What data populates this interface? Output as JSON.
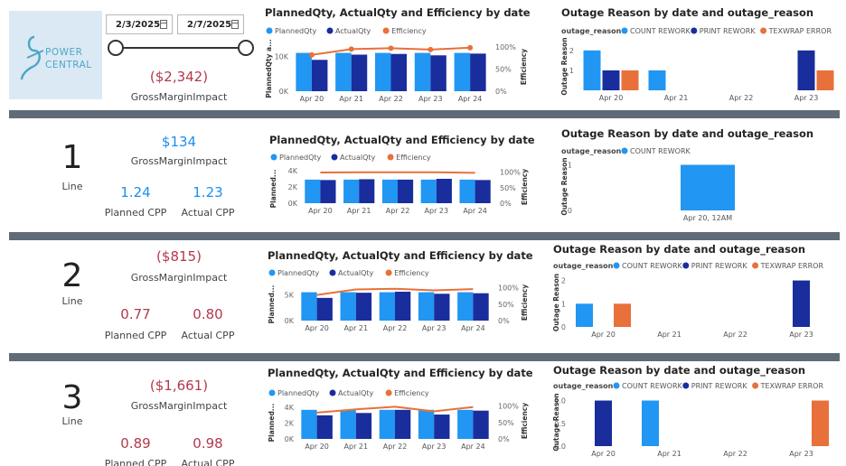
{
  "logo": {
    "line1": "POWER",
    "line2": "CENTRAL"
  },
  "date_range": {
    "start": "2/3/2025",
    "end": "2/7/2025",
    "start_fraction": 0.0,
    "end_fraction": 1.0
  },
  "summary": {
    "gross_margin_value": "($2,342)",
    "gross_margin_label": "GrossMarginImpact"
  },
  "labels": {
    "line": "Line",
    "gmi": "GrossMarginImpact",
    "planned_cpp": "Planned CPP",
    "actual_cpp": "Actual CPP"
  },
  "rows": [
    {
      "line_number": "1",
      "gmi_value": "$134",
      "gmi_color": "#1a8ff0",
      "planned_cpp": "1.24",
      "actual_cpp": "1.23",
      "cpp_color": "#1a8ff0"
    },
    {
      "line_number": "2",
      "gmi_value": "($815)",
      "gmi_color": "#b4384c",
      "planned_cpp": "0.77",
      "actual_cpp": "0.80",
      "cpp_color": "#b4384c"
    },
    {
      "line_number": "3",
      "gmi_value": "($1,661)",
      "gmi_color": "#b4384c",
      "planned_cpp": "0.89",
      "actual_cpp": "0.98",
      "cpp_color": "#b4384c"
    }
  ],
  "colors": {
    "planned": "#2196f3",
    "actual": "#1a2d9c",
    "efficiency": "#e8703a",
    "count_rework": "#2196f3",
    "print_rework": "#1a2d9c",
    "texwrap_error": "#e8703a",
    "separator": "#5f6b76"
  },
  "chart_data": [
    {
      "id": "qty-total",
      "type": "bar",
      "title": "PlannedQty, ActualQty and Efficiency by date",
      "categories": [
        "Apr 20",
        "Apr 21",
        "Apr 22",
        "Apr 23",
        "Apr 24"
      ],
      "series": [
        {
          "name": "PlannedQty",
          "values": [
            11000,
            11000,
            11000,
            11000,
            11000
          ]
        },
        {
          "name": "ActualQty",
          "values": [
            9000,
            10500,
            10700,
            10300,
            10800
          ]
        },
        {
          "name": "Efficiency",
          "axis": "right",
          "values": [
            82,
            95,
            97,
            94,
            98
          ]
        }
      ],
      "ylabel": "PlannedQty a...",
      "y2label": "Efficiency",
      "yticks": [
        "0K",
        "10K"
      ],
      "ylim": [
        0,
        14000
      ],
      "y2ticks": [
        "0%",
        "50%",
        "100%"
      ],
      "y2lim": [
        0,
        110
      ]
    },
    {
      "id": "qty-line1",
      "type": "bar",
      "title": "PlannedQty, ActualQty and Efficiency by date",
      "categories": [
        "Apr 20",
        "Apr 21",
        "Apr 22",
        "Apr 23",
        "Apr 24"
      ],
      "series": [
        {
          "name": "PlannedQty",
          "values": [
            2900,
            2900,
            2900,
            2900,
            2900
          ]
        },
        {
          "name": "ActualQty",
          "values": [
            2850,
            2950,
            2900,
            3000,
            2850
          ]
        },
        {
          "name": "Efficiency",
          "axis": "right",
          "values": [
            99,
            100,
            100,
            100,
            98
          ]
        }
      ],
      "ylabel": "Planned...",
      "y2label": "Efficiency",
      "yticks": [
        "0K",
        "2K",
        "4K"
      ],
      "ylim": [
        0,
        4000
      ],
      "y2ticks": [
        "0%",
        "50%",
        "100%"
      ],
      "y2lim": [
        0,
        105
      ]
    },
    {
      "id": "qty-line2",
      "type": "bar",
      "title": "PlannedQty, ActualQty and Efficiency by date",
      "categories": [
        "Apr 20",
        "Apr 21",
        "Apr 22",
        "Apr 23",
        "Apr 24"
      ],
      "series": [
        {
          "name": "PlannedQty",
          "values": [
            5500,
            5500,
            5500,
            5500,
            5500
          ]
        },
        {
          "name": "ActualQty",
          "values": [
            4400,
            5400,
            5600,
            5200,
            5300
          ]
        },
        {
          "name": "Efficiency",
          "axis": "right",
          "values": [
            78,
            95,
            97,
            92,
            96
          ]
        }
      ],
      "ylabel": "Planned...",
      "y2label": "Efficiency",
      "yticks": [
        "0K",
        "5K"
      ],
      "ylim": [
        0,
        7000
      ],
      "y2ticks": [
        "0%",
        "50%",
        "100%"
      ],
      "y2lim": [
        0,
        110
      ]
    },
    {
      "id": "qty-line3",
      "type": "bar",
      "title": "PlannedQty, ActualQty and Efficiency by date",
      "categories": [
        "Apr 20",
        "Apr 21",
        "Apr 22",
        "Apr 23",
        "Apr 24"
      ],
      "series": [
        {
          "name": "PlannedQty",
          "values": [
            3700,
            3700,
            3700,
            3700,
            3700
          ]
        },
        {
          "name": "ActualQty",
          "values": [
            3000,
            3300,
            3700,
            3100,
            3600
          ]
        },
        {
          "name": "Efficiency",
          "axis": "right",
          "values": [
            80,
            90,
            98,
            84,
            97
          ]
        }
      ],
      "ylabel": "Planned...",
      "y2label": "Efficiency",
      "yticks": [
        "0K",
        "2K",
        "4K"
      ],
      "ylim": [
        0,
        4600
      ],
      "y2ticks": [
        "0%",
        "50%",
        "100%"
      ],
      "y2lim": [
        0,
        110
      ]
    },
    {
      "id": "outage-total",
      "type": "bar",
      "title": "Outage Reason by date and outage_reason",
      "legend_title": "outage_reason",
      "categories": [
        "Apr 20",
        "Apr 21",
        "Apr 22",
        "Apr 23"
      ],
      "series": [
        {
          "name": "COUNT REWORK",
          "values": [
            2,
            1,
            0,
            0
          ]
        },
        {
          "name": "PRINT REWORK",
          "values": [
            1,
            0,
            0,
            2
          ]
        },
        {
          "name": "TEXWRAP ERROR",
          "values": [
            1,
            0,
            0,
            1
          ]
        }
      ],
      "ylabel": "Outage Reason",
      "yticks": [
        "1",
        "2"
      ],
      "ylim": [
        0,
        2.4
      ]
    },
    {
      "id": "outage-line1",
      "type": "bar",
      "title": "Outage Reason by date and outage_reason",
      "legend_title": "outage_reason",
      "categories": [
        "Apr 20, 12AM"
      ],
      "series": [
        {
          "name": "COUNT REWORK",
          "values": [
            1
          ]
        }
      ],
      "ylabel": "Outage Reason",
      "yticks": [
        "0",
        "1"
      ],
      "ylim": [
        0,
        1.05
      ]
    },
    {
      "id": "outage-line2",
      "type": "bar",
      "title": "Outage Reason by date and outage_reason",
      "legend_title": "outage_reason",
      "categories": [
        "Apr 20",
        "Apr 21",
        "Apr 22",
        "Apr 23"
      ],
      "series": [
        {
          "name": "COUNT REWORK",
          "values": [
            1,
            0,
            0,
            0
          ]
        },
        {
          "name": "PRINT REWORK",
          "values": [
            0,
            0,
            0,
            2
          ]
        },
        {
          "name": "TEXWRAP ERROR",
          "values": [
            1,
            0,
            0,
            0
          ]
        }
      ],
      "ylabel": "Outage Reason",
      "yticks": [
        "0",
        "1",
        "2"
      ],
      "ylim": [
        0,
        2.1
      ]
    },
    {
      "id": "outage-line3",
      "type": "bar",
      "title": "Outage Reason by date and outage_reason",
      "legend_title": "outage_reason",
      "categories": [
        "Apr 20",
        "Apr 21",
        "Apr 22",
        "Apr 23"
      ],
      "series": [
        {
          "name": "COUNT REWORK",
          "values": [
            0,
            1,
            0,
            0
          ]
        },
        {
          "name": "PRINT REWORK",
          "values": [
            1,
            0,
            0,
            0
          ]
        },
        {
          "name": "TEXWRAP ERROR",
          "values": [
            0,
            0,
            0,
            1
          ]
        }
      ],
      "ylabel": "Outage Reason",
      "yticks": [
        "0.0",
        "0.5",
        "1.0"
      ],
      "ylim": [
        0,
        1.05
      ]
    }
  ]
}
